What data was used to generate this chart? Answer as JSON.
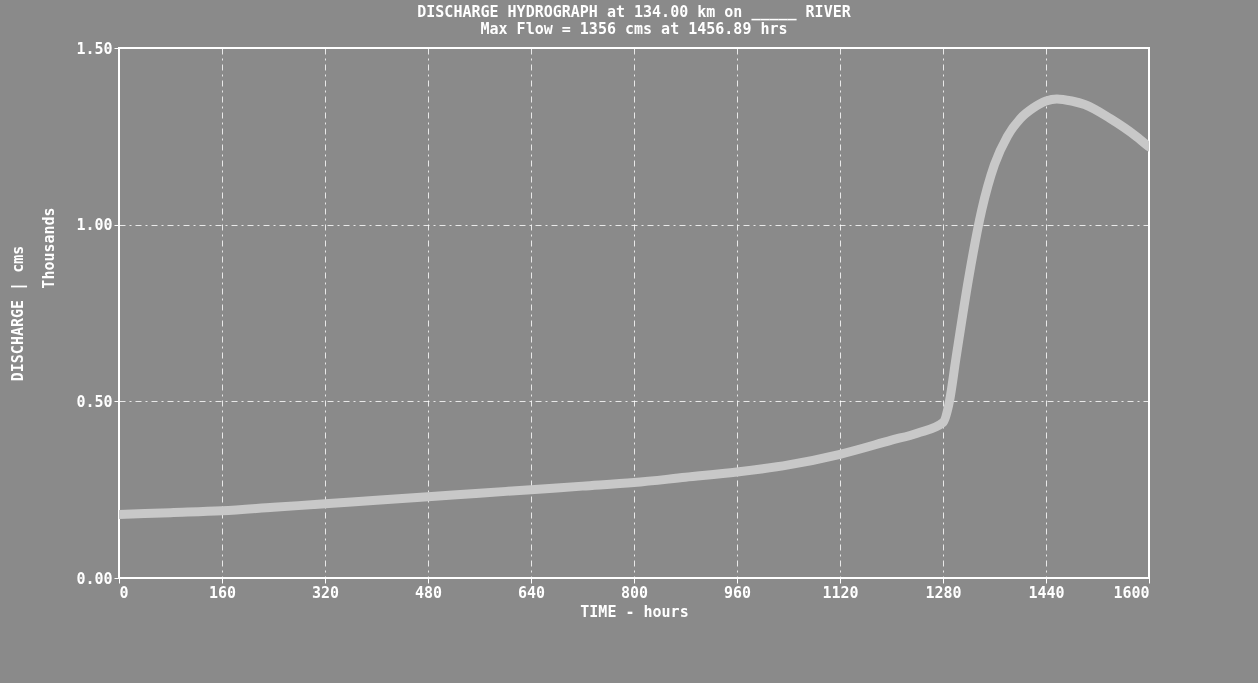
{
  "chart_data": {
    "type": "line",
    "title": "DISCHARGE HYDROGRAPH at 134.00 km on _____ RIVER",
    "subtitle": "Max Flow =     1356 cms at    1456.89 hrs",
    "xlabel": "TIME - hours",
    "ylabel": "DISCHARGE | cms",
    "annotations": [
      "Thousands"
    ],
    "series": [
      {
        "color": "#c8c8c8",
        "x": [
          0,
          80,
          160,
          240,
          320,
          400,
          480,
          560,
          640,
          720,
          800,
          880,
          960,
          1040,
          1120,
          1200,
          1240,
          1280,
          1290,
          1300,
          1320,
          1340,
          1360,
          1380,
          1400,
          1420,
          1440,
          1456.89,
          1480,
          1500,
          1540,
          1580,
          1600
        ],
        "values": [
          0.18,
          0.185,
          0.19,
          0.2,
          0.21,
          0.22,
          0.23,
          0.24,
          0.25,
          0.26,
          0.27,
          0.285,
          0.3,
          0.32,
          0.35,
          0.39,
          0.41,
          0.44,
          0.5,
          0.62,
          0.85,
          1.04,
          1.17,
          1.25,
          1.3,
          1.33,
          1.35,
          1.356,
          1.35,
          1.34,
          1.3,
          1.25,
          1.22
        ]
      }
    ],
    "xlim": [
      0,
      1600
    ],
    "xticks": [
      0,
      160,
      320,
      480,
      640,
      800,
      960,
      1120,
      1280,
      1440,
      1600
    ],
    "ylim": [
      0,
      1.5
    ],
    "yticks": [
      {
        "value": 0,
        "label": "0.00"
      },
      {
        "value": 0.5,
        "label": "0.50"
      },
      {
        "value": 1,
        "label": "1.00"
      },
      {
        "value": 1.5,
        "label": "1.50"
      }
    ],
    "grid": true,
    "line_style": "solid"
  }
}
